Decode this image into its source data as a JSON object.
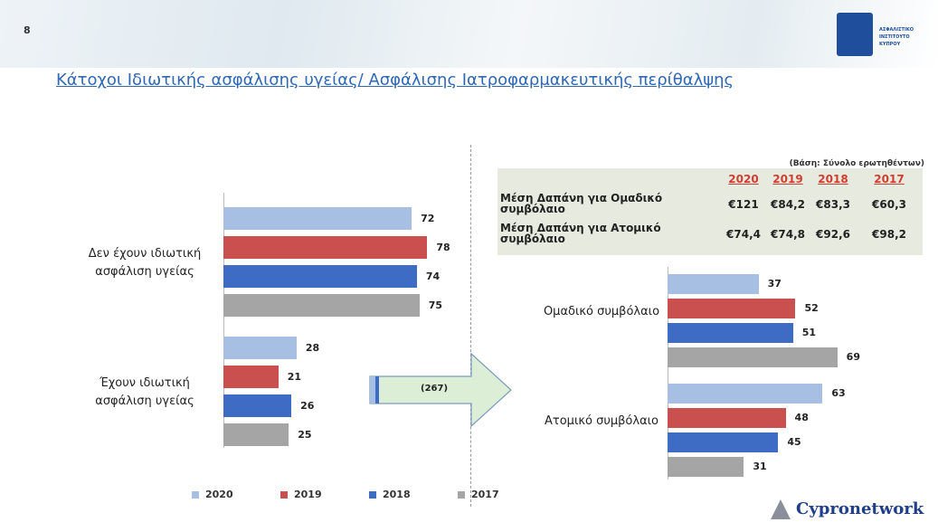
{
  "page_number": "8",
  "title": "Κάτοχοι Ιδιωτικής ασφάλισης υγείας/ Ασφάλισης Ιατροφαρμακευτικής περίθαλψης",
  "base_note": "(Βάση: Σύνολο ερωτηθέντων)",
  "logo_text": [
    "ΑΣΦΑΛΙΣΤΙΚΟ",
    "ΙΝΣΤΙΤΟΥΤΟ",
    "ΚΥΠΡΟΥ"
  ],
  "brand": "Cypronetwork",
  "arrow_label": "(267)",
  "table": {
    "header": [
      "2020",
      "2019",
      "2018",
      "2017"
    ],
    "rows": [
      {
        "label": "Μέση Δαπάνη για Ομαδικό συμβόλαιο",
        "cells": [
          "€121",
          "€84,2",
          "€83,3",
          "€60,3"
        ]
      },
      {
        "label": "Μέση Δαπάνη για Ατομικό συμβόλαιο",
        "cells": [
          "€74,4",
          "€74,8",
          "€92,6",
          "€98,2"
        ]
      }
    ]
  },
  "chart_data": [
    {
      "type": "bar",
      "orientation": "horizontal",
      "categories": [
        "Δεν έχουν ιδιωτική ασφάλιση υγείας",
        "Έχουν ιδιωτική ασφάλιση υγείας"
      ],
      "xlim": [
        0,
        100
      ],
      "legend": "bottom",
      "series": [
        {
          "name": "2020",
          "color": "#a8bfe4",
          "values": [
            72,
            28
          ]
        },
        {
          "name": "2019",
          "color": "#c9504f",
          "values": [
            78,
            21
          ]
        },
        {
          "name": "2018",
          "color": "#3e6cc4",
          "values": [
            74,
            26
          ]
        },
        {
          "name": "2017",
          "color": "#a5a5a5",
          "values": [
            75,
            25
          ]
        }
      ]
    },
    {
      "type": "bar",
      "orientation": "horizontal",
      "categories": [
        "Ομαδικό συμβόλαιο",
        "Ατομικό συμβόλαιο"
      ],
      "xlim": [
        0,
        100
      ],
      "series": [
        {
          "color": "#a8bfe4",
          "values": [
            37,
            63
          ]
        },
        {
          "color": "#c9504f",
          "values": [
            52,
            48
          ]
        },
        {
          "color": "#3e6cc4",
          "values": [
            51,
            45
          ]
        },
        {
          "color": "#a5a5a5",
          "values": [
            69,
            31
          ]
        }
      ]
    }
  ]
}
